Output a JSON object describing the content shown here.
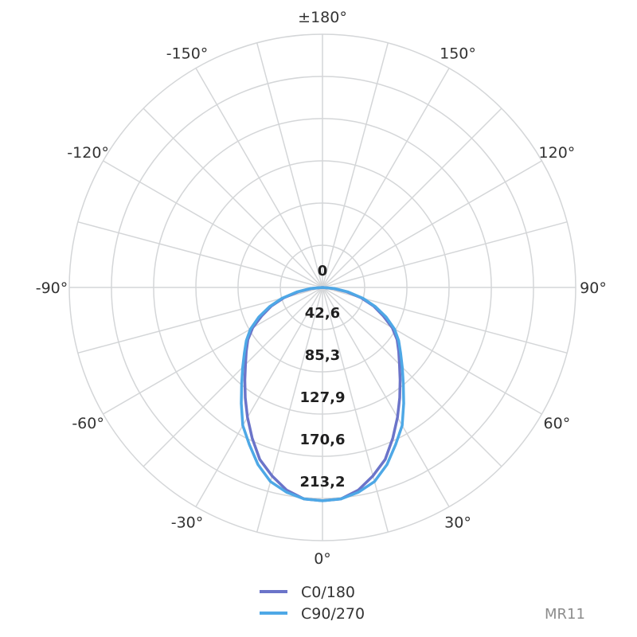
{
  "chart_data": {
    "type": "polar",
    "angle_labels": [
      {
        "angle": 180,
        "text": "±180°"
      },
      {
        "angle": -150,
        "text": "-150°"
      },
      {
        "angle": 150,
        "text": "150°"
      },
      {
        "angle": -120,
        "text": "-120°"
      },
      {
        "angle": 120,
        "text": "120°"
      },
      {
        "angle": -90,
        "text": "-90°"
      },
      {
        "angle": 90,
        "text": "90°"
      },
      {
        "angle": -60,
        "text": "-60°"
      },
      {
        "angle": 60,
        "text": "60°"
      },
      {
        "angle": -30,
        "text": "-30°"
      },
      {
        "angle": 30,
        "text": "30°"
      },
      {
        "angle": 0,
        "text": "0°"
      }
    ],
    "spoke_step_deg": 15,
    "rmax": 255.8,
    "rings": [
      0,
      42.6,
      85.3,
      127.9,
      170.6,
      213.2,
      255.8
    ],
    "ring_labels": [
      {
        "value": 0,
        "text": "0"
      },
      {
        "value": 42.6,
        "text": "42,6"
      },
      {
        "value": 85.3,
        "text": "85,3"
      },
      {
        "value": 127.9,
        "text": "127,9"
      },
      {
        "value": 170.6,
        "text": "170,6"
      },
      {
        "value": 213.2,
        "text": "213,2"
      }
    ],
    "series": [
      {
        "name": "C0/180",
        "color": "#6b74c9",
        "angles": [
          0,
          5,
          10,
          15,
          20,
          25,
          30,
          35,
          40,
          45,
          50,
          55,
          60,
          65,
          70,
          75,
          80,
          85,
          90
        ],
        "values": [
          215.5,
          214.5,
          208,
          197,
          185,
          168,
          151.5,
          136,
          122,
          110,
          100.5,
          92,
          81.5,
          67.5,
          55,
          40.5,
          24.5,
          11,
          0
        ]
      },
      {
        "name": "C90/270",
        "color": "#4ea8e6",
        "angles": [
          0,
          5,
          10,
          15,
          20,
          25,
          30,
          35,
          40,
          45,
          50,
          55,
          60,
          65,
          70,
          75,
          80,
          85,
          90
        ],
        "values": [
          215.5,
          214.5,
          210,
          203,
          190.5,
          175,
          161,
          143,
          127,
          114,
          103,
          94,
          84,
          71,
          57,
          42.5,
          26.5,
          12.5,
          0
        ]
      }
    ],
    "legend_position": "bottom-center",
    "model_label": "MR11"
  }
}
